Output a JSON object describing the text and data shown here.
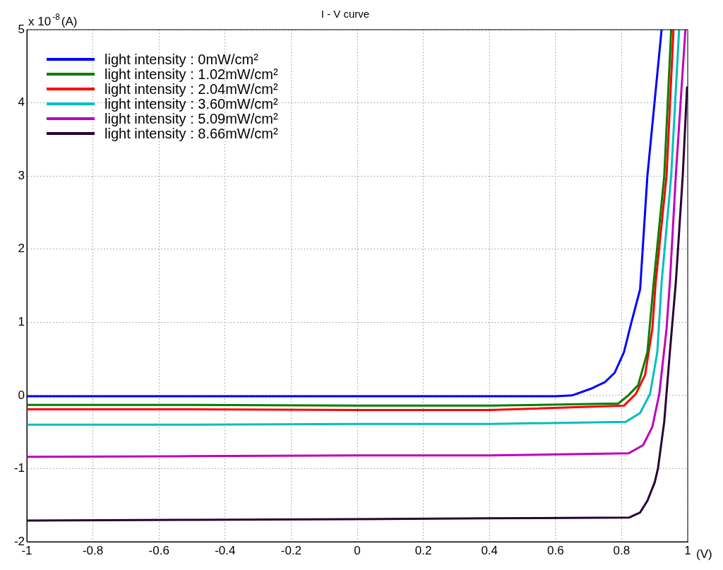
{
  "chart_data": {
    "type": "line",
    "title": "I - V curve",
    "xlabel": "(V)",
    "ylabel": "x 10$^{-8}$(A)",
    "xlim": [
      -1,
      1
    ],
    "ylim": [
      -2,
      5
    ],
    "xticks": [
      -1,
      -0.8,
      -0.6,
      -0.4,
      -0.2,
      0,
      0.2,
      0.4,
      0.6,
      0.8,
      1
    ],
    "yticks": [
      -2,
      -1,
      0,
      1,
      2,
      3,
      4,
      5
    ],
    "grid": true,
    "legend": "top left",
    "marker": "none",
    "line_style": "solid",
    "series": [
      {
        "name": "light intensity : 0mW/cm²",
        "color": "#0000ff",
        "x": [
          -1,
          -0.5,
          0,
          0.3,
          0.6,
          0.65,
          0.706,
          0.749,
          0.779,
          0.807,
          0.828,
          0.856,
          0.878,
          0.921
        ],
        "values": [
          -0.01,
          -0.01,
          -0.01,
          -0.01,
          -0.01,
          0,
          0.09,
          0.18,
          0.31,
          0.59,
          0.97,
          1.45,
          3,
          5
        ]
      },
      {
        "name": "light intensity : 1.02mW/cm²",
        "color": "#008000",
        "x": [
          -1,
          -0.5,
          0,
          0.4,
          0.79,
          0.82,
          0.85,
          0.878,
          0.897,
          0.929,
          0.95
        ],
        "values": [
          -0.13,
          -0.13,
          -0.14,
          -0.14,
          -0.11,
          0,
          0.14,
          0.59,
          1.54,
          3,
          5
        ]
      },
      {
        "name": "light intensity : 2.04mW/cm²",
        "color": "#ff0000",
        "x": [
          -1,
          -0.5,
          0,
          0.4,
          0.807,
          0.843,
          0.871,
          0.893,
          0.903,
          0.936,
          0.957
        ],
        "values": [
          -0.19,
          -0.19,
          -0.2,
          -0.2,
          -0.14,
          0.02,
          0.28,
          0.91,
          1.54,
          3,
          5
        ]
      },
      {
        "name": "light intensity : 3.60mW/cm²",
        "color": "#00bfbf",
        "x": [
          -1,
          -0.5,
          0,
          0.4,
          0.813,
          0.856,
          0.886,
          0.908,
          0.921,
          0.95,
          0.974
        ],
        "values": [
          -0.4,
          -0.4,
          -0.39,
          -0.39,
          -0.36,
          -0.24,
          0.02,
          0.59,
          1.54,
          3,
          5
        ]
      },
      {
        "name": "light intensity : 5.09mW/cm²",
        "color": "#bf00bf",
        "x": [
          -1,
          -0.5,
          0,
          0.4,
          0.822,
          0.865,
          0.893,
          0.914,
          0.936,
          0.946,
          0.964,
          0.993
        ],
        "values": [
          -0.84,
          -0.83,
          -0.82,
          -0.82,
          -0.79,
          -0.68,
          -0.43,
          0.02,
          0.91,
          1.54,
          3,
          5
        ]
      },
      {
        "name": "light intensity : 8.66mW/cm²",
        "color": "#2a0033",
        "x": [
          -1,
          -0.5,
          0,
          0.4,
          0.822,
          0.856,
          0.878,
          0.9,
          0.91,
          0.929,
          0.946,
          0.964,
          0.985,
          0.998
        ],
        "values": [
          -1.71,
          -1.7,
          -1.69,
          -1.68,
          -1.67,
          -1.6,
          -1.44,
          -1.19,
          -1,
          -0.36,
          0.59,
          1.54,
          3,
          4.21
        ]
      }
    ]
  }
}
